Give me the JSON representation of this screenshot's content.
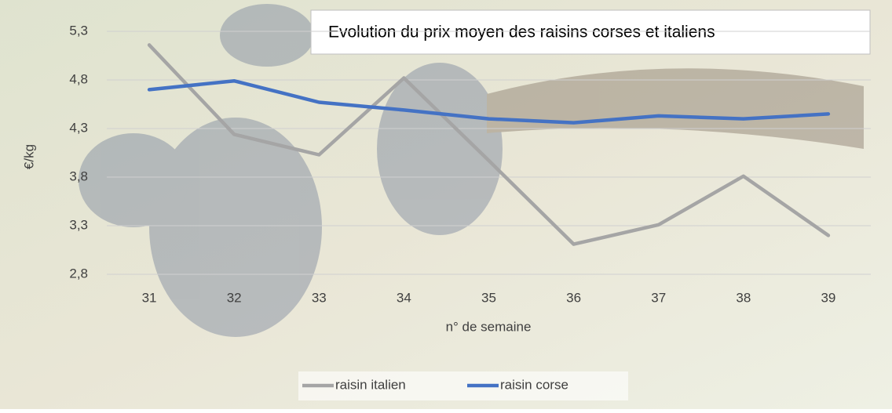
{
  "chart_data": {
    "type": "line",
    "title": "Evolution du prix moyen des raisins corses et italiens",
    "x_label": "n° de semaine",
    "y_label": "€/kg",
    "categories": [
      "31",
      "32",
      "33",
      "34",
      "35",
      "36",
      "37",
      "38",
      "39"
    ],
    "series": [
      {
        "name": "raisin italien",
        "color": "#a5a5a5",
        "values": [
          5.16,
          4.24,
          4.03,
          4.82,
          3.97,
          3.11,
          3.31,
          3.81,
          3.2
        ]
      },
      {
        "name": "raisin corse",
        "color": "#4472c4",
        "values": [
          4.7,
          4.79,
          4.57,
          4.49,
          4.4,
          4.36,
          4.43,
          4.4,
          4.45
        ]
      }
    ],
    "ylim": [
      2.8,
      5.3
    ],
    "yticks": [
      {
        "value": 2.8,
        "label": "2,8"
      },
      {
        "value": 3.3,
        "label": "3,3"
      },
      {
        "value": 3.8,
        "label": "3,8"
      },
      {
        "value": 4.3,
        "label": "4,3"
      },
      {
        "value": 4.8,
        "label": "4,8"
      },
      {
        "value": 5.3,
        "label": "5,3"
      }
    ],
    "grid": true
  }
}
